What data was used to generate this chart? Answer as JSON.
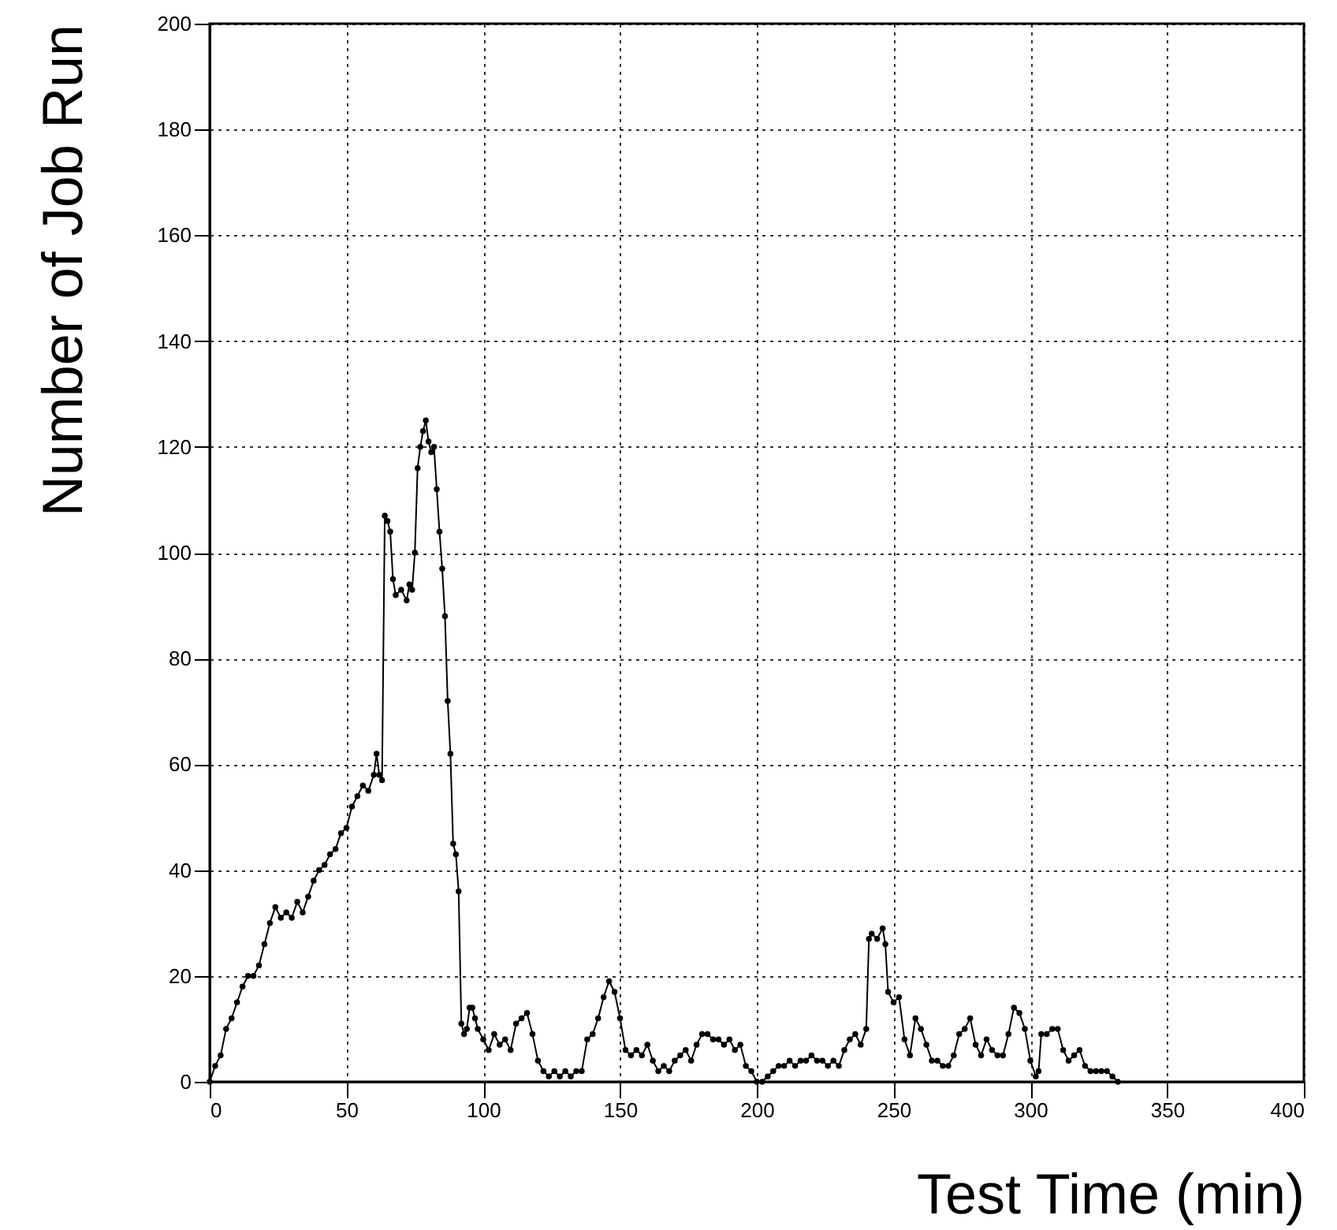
{
  "chart_data": {
    "type": "line",
    "xlabel": "Test Time (min)",
    "ylabel": "Number of Job Run",
    "xlim": [
      0,
      400
    ],
    "ylim": [
      0,
      200
    ],
    "xticks": [
      0,
      50,
      100,
      150,
      200,
      250,
      300,
      350,
      400
    ],
    "yticks": [
      0,
      20,
      40,
      60,
      80,
      100,
      120,
      140,
      160,
      180,
      200
    ],
    "grid": true,
    "marker": "circle",
    "line_style": "solid",
    "series": [
      {
        "color": "#000000",
        "x": [
          0,
          2,
          4,
          6,
          8,
          10,
          12,
          14,
          16,
          18,
          20,
          22,
          24,
          26,
          28,
          30,
          32,
          34,
          36,
          38,
          40,
          42,
          44,
          46,
          48,
          50,
          52,
          54,
          56,
          58,
          60,
          61,
          62,
          63,
          64,
          65,
          66,
          67,
          68,
          70,
          72,
          73,
          74,
          75,
          76,
          77,
          78,
          79,
          80,
          81,
          82,
          83,
          84,
          85,
          86,
          87,
          88,
          89,
          90,
          91,
          92,
          93,
          94,
          95,
          96,
          97,
          98,
          100,
          102,
          104,
          106,
          108,
          110,
          112,
          114,
          116,
          118,
          120,
          122,
          124,
          126,
          128,
          130,
          132,
          134,
          136,
          138,
          140,
          142,
          144,
          146,
          148,
          150,
          152,
          154,
          156,
          158,
          160,
          162,
          164,
          166,
          168,
          170,
          172,
          174,
          176,
          178,
          180,
          182,
          184,
          186,
          188,
          190,
          192,
          194,
          196,
          198,
          200,
          202,
          204,
          206,
          208,
          210,
          212,
          214,
          216,
          218,
          220,
          222,
          224,
          226,
          228,
          230,
          232,
          234,
          236,
          238,
          240,
          241,
          242,
          244,
          246,
          247,
          248,
          250,
          252,
          254,
          256,
          258,
          260,
          262,
          264,
          266,
          268,
          270,
          272,
          274,
          276,
          278,
          280,
          282,
          284,
          286,
          288,
          290,
          292,
          294,
          296,
          298,
          300,
          302,
          303,
          304,
          306,
          308,
          310,
          312,
          314,
          316,
          318,
          320,
          322,
          324,
          326,
          328,
          330,
          332
        ],
        "values": [
          0,
          3,
          5,
          10,
          12,
          15,
          18,
          20,
          20,
          22,
          26,
          30,
          33,
          31,
          32,
          31,
          34,
          32,
          35,
          38,
          40,
          41,
          43,
          44,
          47,
          48,
          52,
          54,
          56,
          55,
          58,
          62,
          58,
          57,
          107,
          106,
          104,
          95,
          92,
          93,
          91,
          94,
          93,
          100,
          116,
          120,
          123,
          125,
          121,
          119,
          120,
          112,
          104,
          97,
          88,
          72,
          62,
          45,
          43,
          36,
          11,
          9,
          10,
          14,
          14,
          12,
          10,
          8,
          6,
          9,
          7,
          8,
          6,
          11,
          12,
          13,
          9,
          4,
          2,
          1,
          2,
          1,
          2,
          1,
          2,
          2,
          8,
          9,
          12,
          16,
          19,
          17,
          12,
          6,
          5,
          6,
          5,
          7,
          4,
          2,
          3,
          2,
          4,
          5,
          6,
          4,
          7,
          9,
          9,
          8,
          8,
          7,
          8,
          6,
          7,
          3,
          2,
          0,
          0,
          1,
          2,
          3,
          3,
          4,
          3,
          4,
          4,
          5,
          4,
          4,
          3,
          4,
          3,
          6,
          8,
          9,
          7,
          10,
          27,
          28,
          27,
          29,
          26,
          17,
          15,
          16,
          8,
          5,
          12,
          10,
          7,
          4,
          4,
          3,
          3,
          5,
          9,
          10,
          12,
          7,
          5,
          8,
          6,
          5,
          5,
          9,
          14,
          13,
          10,
          4,
          1,
          2,
          9,
          9,
          10,
          10,
          6,
          4,
          5,
          6,
          3,
          2,
          2,
          2,
          2,
          1,
          0
        ]
      }
    ]
  }
}
